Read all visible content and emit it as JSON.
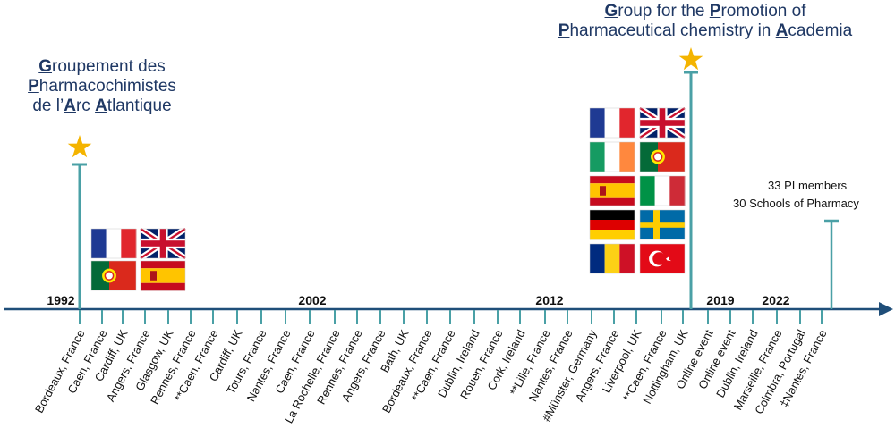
{
  "title_gpaa": {
    "lines": [
      [
        {
          "t": "G",
          "b": true
        },
        {
          "t": "roupement des"
        }
      ],
      [
        {
          "t": "P",
          "b": true
        },
        {
          "t": "harmacochimistes"
        }
      ],
      [
        {
          "t": "de l’"
        },
        {
          "t": "A",
          "b": true
        },
        {
          "t": "rc "
        },
        {
          "t": "A",
          "b": true
        },
        {
          "t": "tlantique"
        }
      ]
    ]
  },
  "title_gp2a": {
    "lines": [
      [
        {
          "t": "G",
          "b": true
        },
        {
          "t": "roup for the "
        },
        {
          "t": "P",
          "b": true
        },
        {
          "t": "romotion of"
        }
      ],
      [
        {
          "t": "P",
          "b": true
        },
        {
          "t": "harmaceutical chemistry in "
        },
        {
          "t": "A",
          "b": true
        },
        {
          "t": "cademia"
        }
      ]
    ]
  },
  "stats": {
    "pi_members": "33  PI members",
    "schools": "30  Schools of Pharmacy"
  },
  "year_labels": [
    "1992",
    "2002",
    "2012",
    "2019",
    "2022"
  ],
  "events": [
    "Bordeaux, France",
    "Caen, France",
    "Cardiff, UK",
    "Angers, France",
    "Glasgow, UK",
    "Rennes, France",
    "**Caen, France",
    "Cardiff, UK",
    "Tours, France",
    "Nantes, France",
    "Caen, France",
    "La Rochelle, France",
    "Rennes, France",
    "Angers, France",
    "Bath, UK",
    "Bordeaux, France",
    "**Caen, France",
    "Dublin, Ireland",
    "Rouen, France",
    "Cork, Ireland",
    "**Lille, France",
    "Nantes, France",
    "#Münster, Germany",
    "Angers, France",
    "Liverpool, UK",
    "**Caen, France",
    "Nottingham, UK",
    "Online event",
    "Online event",
    "Dublin, Ireland",
    "Marseille, France",
    "Coimbra, Portugal",
    "‡Nantes, France"
  ],
  "flags_gpaa": [
    "France",
    "United Kingdom",
    "Portugal",
    "Spain"
  ],
  "flags_gp2a": [
    "France",
    "United Kingdom",
    "Ireland",
    "Portugal",
    "Spain",
    "Italy",
    "Germany",
    "Sweden",
    "Romania",
    "Turkey"
  ],
  "colors": {
    "title": "#1f3864",
    "axis": "#1f4e79",
    "tick": "#4aa0a6",
    "star": "#f4b400"
  }
}
